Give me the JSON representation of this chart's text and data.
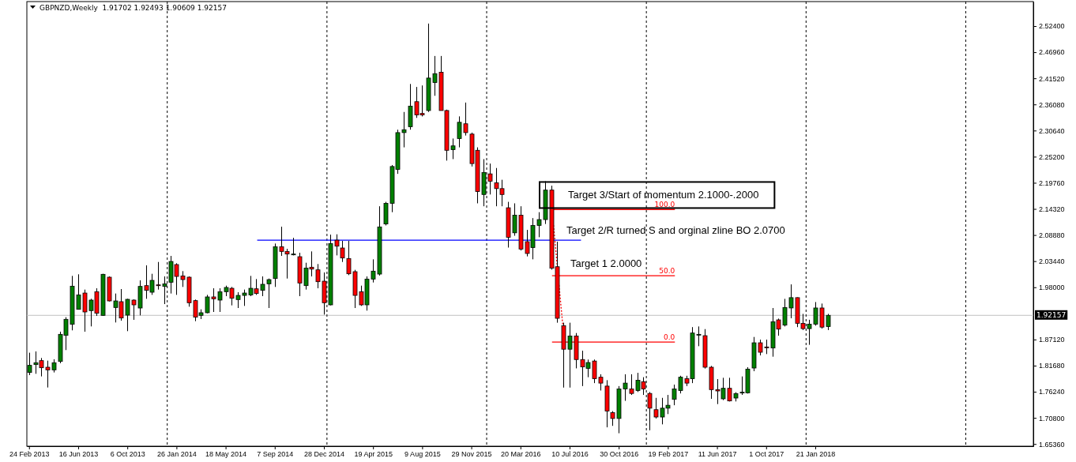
{
  "chart_data": {
    "type": "candlestick",
    "title": "GBPNZD,Weekly  1.91702 1.92493 1.90609 1.92157",
    "x": [
      "2013-02-24",
      "2013-03-10",
      "2013-03-24",
      "2013-04-07",
      "2013-04-21",
      "2013-05-05",
      "2013-05-19",
      "2013-06-02",
      "2013-06-16",
      "2013-06-30",
      "2013-07-14",
      "2013-07-28",
      "2013-08-11",
      "2013-08-25",
      "2013-09-08",
      "2013-09-22",
      "2013-10-06",
      "2013-10-20",
      "2013-11-03",
      "2013-11-17",
      "2013-12-01",
      "2013-12-15",
      "2013-12-29",
      "2014-01-12",
      "2014-01-26",
      "2014-02-09",
      "2014-02-23",
      "2014-03-09",
      "2014-03-23",
      "2014-04-06",
      "2014-04-20",
      "2014-05-04",
      "2014-05-18",
      "2014-06-01",
      "2014-06-15",
      "2014-06-29",
      "2014-07-13",
      "2014-07-27",
      "2014-08-10",
      "2014-08-24",
      "2014-09-07",
      "2014-09-21",
      "2014-10-05",
      "2014-10-19",
      "2014-11-02",
      "2014-11-16",
      "2014-11-30",
      "2014-12-14",
      "2014-12-28",
      "2015-01-11",
      "2015-01-25",
      "2015-02-08",
      "2015-02-22",
      "2015-03-08",
      "2015-03-22",
      "2015-04-05",
      "2015-04-19",
      "2015-05-03",
      "2015-05-17",
      "2015-05-31",
      "2015-06-14",
      "2015-06-28",
      "2015-07-12",
      "2015-07-26",
      "2015-08-09",
      "2015-08-23",
      "2015-09-06",
      "2015-09-20",
      "2015-10-04",
      "2015-10-18",
      "2015-11-01",
      "2015-11-15",
      "2015-11-29",
      "2015-12-13",
      "2015-12-27",
      "2016-01-10",
      "2016-01-24",
      "2016-02-07",
      "2016-02-21",
      "2016-03-06",
      "2016-03-20",
      "2016-04-03",
      "2016-04-17",
      "2016-05-01",
      "2016-05-15",
      "2016-05-29",
      "2016-06-12",
      "2016-06-26",
      "2016-07-10",
      "2016-07-24",
      "2016-08-07",
      "2016-08-21",
      "2016-09-04",
      "2016-09-18",
      "2016-10-02",
      "2016-10-16",
      "2016-10-30",
      "2016-11-13",
      "2016-11-27",
      "2016-12-11",
      "2016-12-25",
      "2017-01-08",
      "2017-01-22",
      "2017-02-05",
      "2017-02-19",
      "2017-03-05",
      "2017-03-19",
      "2017-04-02",
      "2017-04-16",
      "2017-04-30",
      "2017-05-14",
      "2017-05-28",
      "2017-06-11",
      "2017-06-25",
      "2017-07-09",
      "2017-07-23",
      "2017-08-06",
      "2017-08-20",
      "2017-09-03",
      "2017-09-17",
      "2017-10-01",
      "2017-10-15",
      "2017-10-29",
      "2017-11-12",
      "2017-11-26",
      "2017-12-10",
      "2017-12-24",
      "2018-01-07",
      "2018-01-21",
      "2018-02-04",
      "2018-02-18"
    ],
    "ohlc": [
      [
        1.8026,
        1.8437,
        1.7971,
        1.8174
      ],
      [
        1.819,
        1.8464,
        1.7998,
        1.8229
      ],
      [
        1.8272,
        1.8327,
        1.7944,
        1.8124
      ],
      [
        1.8135,
        1.8272,
        1.7713,
        1.808
      ],
      [
        1.808,
        1.83,
        1.8026,
        1.8229
      ],
      [
        1.8256,
        1.8875,
        1.8218,
        1.882
      ],
      [
        1.8798,
        1.9177,
        1.8492,
        1.9133
      ],
      [
        1.9029,
        2.0037,
        1.8903,
        1.9823
      ],
      [
        1.934,
        2.007,
        1.934,
        1.9642
      ],
      [
        1.968,
        1.9752,
        1.8875,
        1.9286
      ],
      [
        1.9314,
        1.956,
        1.8985,
        1.9533
      ],
      [
        1.9708,
        1.9779,
        1.9204,
        1.9259
      ],
      [
        1.9215,
        2.0081,
        1.9204,
        2.007
      ],
      [
        2.001,
        2.0026,
        1.9505,
        1.9516
      ],
      [
        1.9379,
        1.967,
        1.9067,
        1.9516
      ],
      [
        1.95,
        1.9763,
        1.9105,
        1.916
      ],
      [
        1.922,
        1.956,
        1.8886,
        1.9549
      ],
      [
        1.9533,
        1.9549,
        1.9122,
        1.9434
      ],
      [
        1.9368,
        1.9944,
        1.9215,
        1.9818
      ],
      [
        1.9834,
        2.0256,
        1.956,
        1.9736
      ],
      [
        1.9697,
        2.0081,
        1.9642,
        1.9944
      ],
      [
        1.985,
        2.0327,
        1.9752,
        1.9834
      ],
      [
        1.9818,
        2.0026,
        1.945,
        1.9872
      ],
      [
        1.9905,
        2.0453,
        1.967,
        2.0338
      ],
      [
        2.0273,
        2.03,
        1.9642,
        2.0026
      ],
      [
        2.0037,
        2.0136,
        1.9807,
        1.996
      ],
      [
        2.001,
        2.0026,
        1.9396,
        1.9478
      ],
      [
        1.9522,
        1.9544,
        1.9094,
        1.9177
      ],
      [
        1.9215,
        1.934,
        1.9138,
        1.927
      ],
      [
        1.927,
        1.9642,
        1.9259,
        1.9599
      ],
      [
        1.9599,
        1.9779,
        1.9286,
        1.956
      ],
      [
        1.9533,
        1.9779,
        1.9286,
        1.9708
      ],
      [
        1.9708,
        1.9834,
        1.9615,
        1.9796
      ],
      [
        1.9779,
        1.9807,
        1.9423,
        1.9571
      ],
      [
        1.9544,
        1.9697,
        1.9368,
        1.9631
      ],
      [
        1.9631,
        1.9752,
        1.9412,
        1.968
      ],
      [
        1.9642,
        2.0037,
        1.9615,
        1.9779
      ],
      [
        1.9768,
        1.9971,
        1.9642,
        1.967
      ],
      [
        1.9736,
        2.0026,
        1.9615,
        1.9862
      ],
      [
        1.9872,
        1.9982,
        1.9368,
        1.996
      ],
      [
        1.9982,
        2.0711,
        1.9807,
        2.0645
      ],
      [
        2.0645,
        2.1062,
        2.0453,
        2.0547
      ],
      [
        2.0547,
        2.0601,
        1.9982,
        2.0492
      ],
      [
        2.0492,
        2.083,
        2.0464,
        2.0492
      ],
      [
        2.0437,
        2.0519,
        1.9615,
        1.9889
      ],
      [
        1.9834,
        2.0311,
        1.9752,
        2.0201
      ],
      [
        2.0218,
        2.0547,
        2.0026,
        2.0179
      ],
      [
        2.0163,
        2.0284,
        1.9779,
        1.9916
      ],
      [
        1.9927,
        2.0108,
        1.9231,
        1.9478
      ],
      [
        1.9434,
        2.0897,
        1.9423,
        2.0711
      ],
      [
        2.0782,
        2.0903,
        2.0464,
        2.0656
      ],
      [
        2.0618,
        2.0766,
        2.0327,
        2.041
      ],
      [
        2.0399,
        2.0766,
        2.0053,
        2.0081
      ],
      [
        2.0125,
        2.0163,
        1.9368,
        1.9631
      ],
      [
        1.9708,
        1.9834,
        1.9412,
        1.9434
      ],
      [
        1.9434,
        2.0026,
        1.9314,
        1.9971
      ],
      [
        1.9971,
        2.0382,
        1.99,
        2.0136
      ],
      [
        2.0075,
        2.1487,
        2.0044,
        2.1057
      ],
      [
        2.1118,
        2.1579,
        2.1088,
        2.1548
      ],
      [
        2.1548,
        2.2346,
        2.1364,
        2.2315
      ],
      [
        2.2254,
        2.3082,
        2.2162,
        2.3021
      ],
      [
        2.3021,
        2.3451,
        2.2714,
        2.3082
      ],
      [
        2.3144,
        2.4034,
        2.3082,
        2.3573
      ],
      [
        2.3665,
        2.3972,
        2.3328,
        2.3389
      ],
      [
        2.342,
        2.4003,
        2.3358,
        2.3389
      ],
      [
        2.3481,
        2.5292,
        2.3451,
        2.4157
      ],
      [
        2.4064,
        2.4617,
        2.3788,
        2.4249
      ],
      [
        2.4279,
        2.4617,
        2.3481,
        2.3481
      ],
      [
        2.3481,
        2.35,
        2.2438,
        2.2653
      ],
      [
        2.2665,
        2.2898,
        2.2469,
        2.2745
      ],
      [
        2.2898,
        2.3359,
        2.2714,
        2.3236
      ],
      [
        2.3205,
        2.3647,
        2.296,
        2.3021
      ],
      [
        2.299,
        2.3021,
        2.2315,
        2.2376
      ],
      [
        2.2653,
        2.2714,
        2.1548,
        2.1793
      ],
      [
        2.1732,
        2.2469,
        2.1487,
        2.2192
      ],
      [
        2.2162,
        2.2376,
        2.1732,
        2.2008
      ],
      [
        2.1977,
        2.2284,
        2.1487,
        2.1855
      ],
      [
        2.1855,
        2.2039,
        2.1487,
        2.1732
      ],
      [
        2.1456,
        2.1579,
        2.0627,
        2.0842
      ],
      [
        2.0934,
        2.1548,
        2.0873,
        2.1302
      ],
      [
        2.1302,
        2.1487,
        2.0566,
        2.0596
      ],
      [
        2.075,
        2.0995,
        2.0443,
        2.0504
      ],
      [
        2.0627,
        2.1241,
        2.0382,
        2.1088
      ],
      [
        2.1088,
        2.1364,
        2.0842,
        2.121
      ],
      [
        2.121,
        2.2008,
        2.1118,
        2.1824
      ],
      [
        2.1824,
        2.1916,
        2.0167,
        2.0197
      ],
      [
        2.0228,
        2.075,
        1.9062,
        1.9154
      ],
      [
        1.9001,
        1.9062,
        1.7711,
        1.851
      ],
      [
        1.851,
        1.9062,
        1.7711,
        1.8786
      ],
      [
        1.8786,
        1.8847,
        1.8111,
        1.8295
      ],
      [
        1.8295,
        1.8479,
        1.7742,
        1.8141
      ],
      [
        1.8111,
        1.8295,
        1.7927,
        1.8233
      ],
      [
        1.8264,
        1.8295,
        1.7804,
        1.7896
      ],
      [
        1.7927,
        1.7988,
        1.765,
        1.7804
      ],
      [
        1.7742,
        1.7865,
        1.6883,
        1.7221
      ],
      [
        1.719,
        1.7221,
        1.6914,
        1.7067
      ],
      [
        1.7067,
        1.7742,
        1.676,
        1.7681
      ],
      [
        1.7681,
        1.7988,
        1.7435,
        1.7804
      ],
      [
        1.7681,
        1.7988,
        1.7558,
        1.7589
      ],
      [
        1.765,
        1.8018,
        1.7619,
        1.7865
      ],
      [
        1.7834,
        1.7927,
        1.7558,
        1.7681
      ],
      [
        1.7589,
        1.7619,
        1.6822,
        1.7282
      ],
      [
        1.7251,
        1.7497,
        1.7067,
        1.7098
      ],
      [
        1.7098,
        1.7497,
        1.6945,
        1.7282
      ],
      [
        1.7282,
        1.7558,
        1.7159,
        1.7343
      ],
      [
        1.7466,
        1.7773,
        1.7343,
        1.7681
      ],
      [
        1.765,
        1.7957,
        1.7589,
        1.7927
      ],
      [
        1.7896,
        1.7957,
        1.7742,
        1.7804
      ],
      [
        1.7896,
        1.897,
        1.7804,
        1.8847
      ],
      [
        1.882,
        1.8984,
        1.8573,
        1.882
      ],
      [
        1.8792,
        1.8929,
        1.8107,
        1.8135
      ],
      [
        1.8135,
        1.8162,
        1.7477,
        1.7669
      ],
      [
        1.7669,
        1.7888,
        1.7367,
        1.7641
      ],
      [
        1.7477,
        1.7915,
        1.745,
        1.7696
      ],
      [
        1.7696,
        1.7915,
        1.7422,
        1.7433
      ],
      [
        1.7493,
        1.7614,
        1.7422,
        1.7587
      ],
      [
        1.7614,
        1.7943,
        1.7559,
        1.7614
      ],
      [
        1.7603,
        1.8135,
        1.7587,
        1.8096
      ],
      [
        1.8118,
        1.8765,
        1.8052,
        1.8644
      ],
      [
        1.8644,
        1.871,
        1.8381,
        1.8447
      ],
      [
        1.8557,
        1.871,
        1.8409,
        1.8546
      ],
      [
        1.8535,
        1.9368,
        1.8354,
        1.9083
      ],
      [
        1.9121,
        1.9148,
        1.8792,
        1.8929
      ],
      [
        1.9011,
        1.9559,
        1.8984,
        1.9379
      ],
      [
        1.9369,
        1.986,
        1.9154,
        1.9584
      ],
      [
        1.9584,
        1.959,
        1.897,
        1.905
      ],
      [
        1.905,
        1.9246,
        1.8909,
        1.8939
      ],
      [
        1.8939,
        1.9123,
        1.8602,
        1.9031
      ],
      [
        1.9031,
        1.9492,
        1.9001,
        1.9369
      ],
      [
        1.9369,
        1.9461,
        1.8939,
        1.897
      ],
      [
        1.8982,
        1.9246,
        1.8909,
        1.92157
      ]
    ],
    "series": [
      {
        "name": "100.0",
        "type": "line",
        "color": "#ff0000",
        "x": [
          "2016-05-31",
          "2017-03-07"
        ],
        "values": [
          2.142,
          2.142
        ]
      },
      {
        "name": "50.0",
        "type": "line",
        "color": "#ff0000",
        "x": [
          "2016-05-31",
          "2017-03-07"
        ],
        "values": [
          2.004,
          2.004
        ]
      },
      {
        "name": "0.0",
        "type": "line",
        "color": "#ff0000",
        "x": [
          "2016-05-31",
          "2017-03-07"
        ],
        "values": [
          1.866,
          1.866
        ]
      },
      {
        "type": "line",
        "color": "#ff0000",
        "line_style": "dotted",
        "x": [
          "2016-05-31",
          "2016-06-28"
        ],
        "values": [
          2.142,
          1.866
        ]
      },
      {
        "type": "line",
        "color": "#0000ff",
        "x": [
          "2014-07-29",
          "2016-08-05"
        ],
        "values": [
          2.078,
          2.078
        ]
      }
    ],
    "annotations": [
      "Target 3/Start of momentum 2.1000-.2000",
      "Target 2/R turned S and orginal zline BO 2.0700",
      "Target 1 2.0000"
    ],
    "ref_lines": [
      {
        "axis": "y",
        "value": 1.92157,
        "label": "1.92157",
        "color": "#c0c0c0"
      },
      {
        "axis": "x",
        "value": "2014-01-05",
        "color": "#000000",
        "line_style": "dashed"
      },
      {
        "axis": "x",
        "value": "2015-01-04",
        "color": "#000000",
        "line_style": "dashed"
      },
      {
        "axis": "x",
        "value": "2016-01-03",
        "color": "#000000",
        "line_style": "dashed"
      },
      {
        "axis": "x",
        "value": "2017-01-01",
        "color": "#000000",
        "line_style": "dashed"
      },
      {
        "axis": "x",
        "value": "2017-12-31",
        "color": "#000000",
        "line_style": "dashed"
      },
      {
        "axis": "x",
        "value": "2018-12-30",
        "color": "#000000",
        "line_style": "dashed"
      }
    ],
    "xlim": [
      "2013-02-19",
      "2019-06-02"
    ],
    "xticks": [
      {
        "value": "2013-02-24",
        "label": "24 Feb 2013"
      },
      {
        "value": "2013-06-16",
        "label": "16 Jun 2013"
      },
      {
        "value": "2013-10-06",
        "label": "6 Oct 2013"
      },
      {
        "value": "2014-01-26",
        "label": "26 Jan 2014"
      },
      {
        "value": "2014-05-18",
        "label": "18 May 2014"
      },
      {
        "value": "2014-09-07",
        "label": "7 Sep 2014"
      },
      {
        "value": "2014-12-28",
        "label": "28 Dec 2014"
      },
      {
        "value": "2015-04-19",
        "label": "19 Apr 2015"
      },
      {
        "value": "2015-08-09",
        "label": "9 Aug 2015"
      },
      {
        "value": "2015-11-29",
        "label": "29 Nov 2015"
      },
      {
        "value": "2016-03-20",
        "label": "20 Mar 2016"
      },
      {
        "value": "2016-07-10",
        "label": "10 Jul 2016"
      },
      {
        "value": "2016-10-30",
        "label": "30 Oct 2016"
      },
      {
        "value": "2017-02-19",
        "label": "19 Feb 2017"
      },
      {
        "value": "2017-06-11",
        "label": "11 Jun 2017"
      },
      {
        "value": "2017-10-01",
        "label": "1 Oct 2017"
      },
      {
        "value": "2018-01-21",
        "label": "21 Jan 2018"
      }
    ],
    "ylim": [
      1.649,
      2.575
    ],
    "yticks": [
      {
        "value": 2.524,
        "label": "2.52400"
      },
      {
        "value": 2.4696,
        "label": "2.46960"
      },
      {
        "value": 2.4152,
        "label": "2.41520"
      },
      {
        "value": 2.3608,
        "label": "2.36080"
      },
      {
        "value": 2.3064,
        "label": "2.30640"
      },
      {
        "value": 2.252,
        "label": "2.25200"
      },
      {
        "value": 2.1976,
        "label": "2.19760"
      },
      {
        "value": 2.1432,
        "label": "2.14320"
      },
      {
        "value": 2.0888,
        "label": "2.08880"
      },
      {
        "value": 2.0344,
        "label": "2.03440"
      },
      {
        "value": 1.98,
        "label": "1.98000"
      },
      {
        "value": 1.8712,
        "label": "1.87120"
      },
      {
        "value": 1.8168,
        "label": "1.81680"
      },
      {
        "value": 1.7624,
        "label": "1.76240"
      },
      {
        "value": 1.708,
        "label": "1.70800"
      },
      {
        "value": 1.6536,
        "label": "1.65360"
      }
    ]
  }
}
